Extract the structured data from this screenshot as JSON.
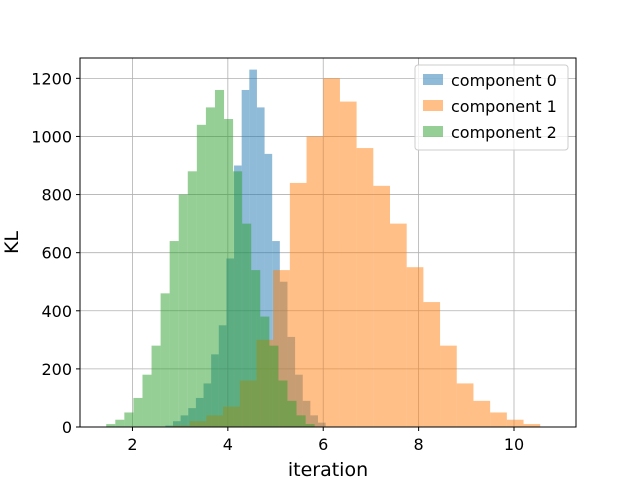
{
  "chart_data": {
    "type": "bar",
    "subtype": "overlapping-histogram",
    "title": "",
    "xlabel": "iteration",
    "ylabel": "KL",
    "xlim": [
      0.9,
      11.3
    ],
    "ylim": [
      0,
      1270
    ],
    "xticks": [
      2,
      4,
      6,
      8,
      10
    ],
    "yticks": [
      0,
      200,
      400,
      600,
      800,
      1000,
      1200
    ],
    "grid": true,
    "legend": "top-right",
    "bar_alpha": 0.5,
    "series": [
      {
        "name": "component 0",
        "color": "#1f77b4",
        "bins": [
          [
            2.69,
            2.85,
            5
          ],
          [
            2.85,
            3.01,
            20
          ],
          [
            3.01,
            3.17,
            40
          ],
          [
            3.17,
            3.33,
            65
          ],
          [
            3.33,
            3.49,
            100
          ],
          [
            3.49,
            3.65,
            150
          ],
          [
            3.65,
            3.81,
            250
          ],
          [
            3.81,
            3.97,
            350
          ],
          [
            3.97,
            4.13,
            580
          ],
          [
            4.13,
            4.29,
            900
          ],
          [
            4.29,
            4.45,
            1160
          ],
          [
            4.45,
            4.61,
            1230
          ],
          [
            4.61,
            4.77,
            1100
          ],
          [
            4.77,
            4.93,
            940
          ],
          [
            4.93,
            5.09,
            640
          ],
          [
            5.09,
            5.25,
            500
          ],
          [
            5.25,
            5.41,
            310
          ],
          [
            5.41,
            5.57,
            180
          ],
          [
            5.57,
            5.73,
            90
          ],
          [
            5.73,
            5.89,
            40
          ],
          [
            5.89,
            6.05,
            15
          ]
        ]
      },
      {
        "name": "component 1",
        "color": "#ff7f0e",
        "bins": [
          [
            2.85,
            3.2,
            5
          ],
          [
            3.2,
            3.55,
            20
          ],
          [
            3.55,
            3.9,
            40
          ],
          [
            3.9,
            4.25,
            70
          ],
          [
            4.25,
            4.6,
            160
          ],
          [
            4.6,
            4.95,
            300
          ],
          [
            4.95,
            5.3,
            540
          ],
          [
            5.3,
            5.65,
            840
          ],
          [
            5.65,
            6.0,
            1000
          ],
          [
            6.0,
            6.35,
            1200
          ],
          [
            6.35,
            6.7,
            1120
          ],
          [
            6.7,
            7.05,
            960
          ],
          [
            7.05,
            7.4,
            830
          ],
          [
            7.4,
            7.75,
            700
          ],
          [
            7.75,
            8.1,
            550
          ],
          [
            8.1,
            8.45,
            430
          ],
          [
            8.45,
            8.8,
            280
          ],
          [
            8.8,
            9.15,
            150
          ],
          [
            9.15,
            9.5,
            90
          ],
          [
            9.5,
            9.85,
            50
          ],
          [
            9.85,
            10.2,
            25
          ],
          [
            10.2,
            10.55,
            10
          ]
        ]
      },
      {
        "name": "component 2",
        "color": "#2ca02c",
        "bins": [
          [
            1.45,
            1.64,
            10
          ],
          [
            1.64,
            1.83,
            25
          ],
          [
            1.83,
            2.02,
            50
          ],
          [
            2.02,
            2.21,
            100
          ],
          [
            2.21,
            2.4,
            180
          ],
          [
            2.4,
            2.59,
            280
          ],
          [
            2.59,
            2.78,
            460
          ],
          [
            2.78,
            2.97,
            640
          ],
          [
            2.97,
            3.16,
            800
          ],
          [
            3.16,
            3.35,
            880
          ],
          [
            3.35,
            3.54,
            1040
          ],
          [
            3.54,
            3.73,
            1100
          ],
          [
            3.73,
            3.92,
            1160
          ],
          [
            3.92,
            4.11,
            1060
          ],
          [
            4.11,
            4.3,
            880
          ],
          [
            4.3,
            4.49,
            700
          ],
          [
            4.49,
            4.68,
            540
          ],
          [
            4.68,
            4.87,
            380
          ],
          [
            4.87,
            5.06,
            280
          ],
          [
            5.06,
            5.25,
            160
          ],
          [
            5.25,
            5.44,
            90
          ],
          [
            5.44,
            5.63,
            40
          ],
          [
            5.63,
            5.82,
            10
          ]
        ]
      }
    ]
  }
}
